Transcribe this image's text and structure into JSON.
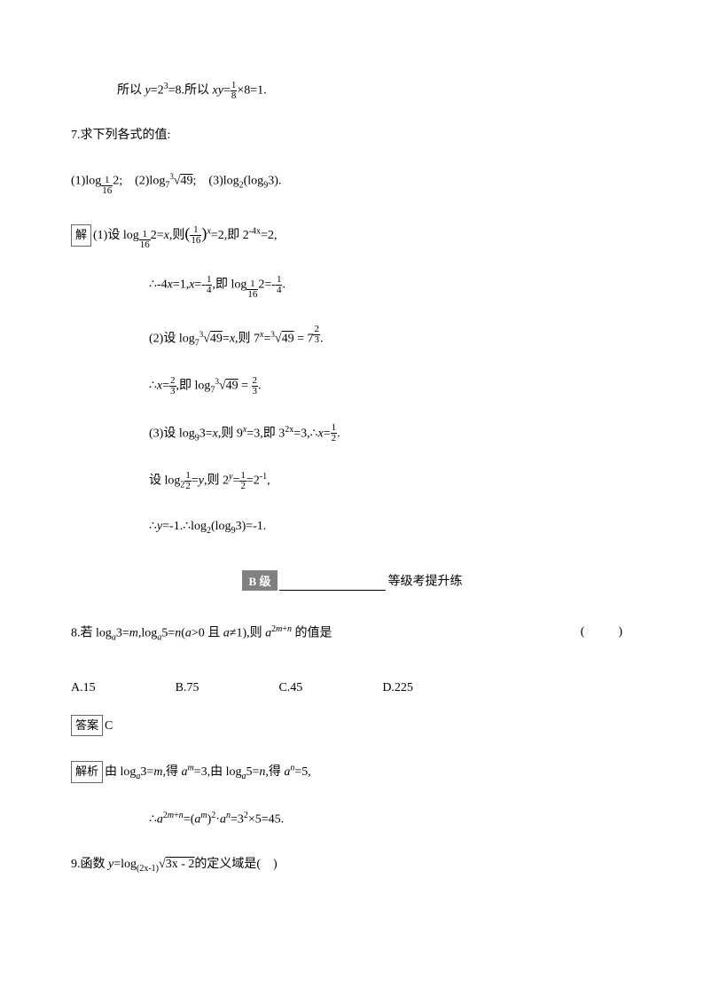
{
  "lines": {
    "l1_prefix": "所以 ",
    "l1_eq1": "y",
    "l1_eq1_b": "=2",
    "l1_eq1_sup": "3",
    "l1_eq1_c": "=8.所以 ",
    "l1_eq2": "xy",
    "l1_eq2_a": "=",
    "l1_frac1_n": "1",
    "l1_frac1_d": "8",
    "l1_eq2_b": "×8=1.",
    "q7": "7.求下列各式的值:",
    "q7sub": "(1)log",
    "q7sub_base_n": "1",
    "q7sub_base_d": "16",
    "q7sub_b": "2; (2)log",
    "q7sub_c": "7",
    "q7sub_root_pre": "3",
    "q7sub_root": "49",
    "q7sub_d": "; (3)log",
    "q7sub_e": "2",
    "q7sub_f": "(log",
    "q7sub_g": "9",
    "q7sub_h": "3).",
    "sol_label": "解",
    "s1a": "(1)设 log",
    "s1a_b": "2=",
    "s1a_x": "x",
    "s1a_c": ",则",
    "s1a_frac_n": "1",
    "s1a_frac_d": "16",
    "s1a_sup": "x",
    "s1a_d": "=2,即 2",
    "s1a_sup2": "-4x",
    "s1a_e": "=2,",
    "s1b": "∴-4",
    "s1b_x": "x",
    "s1b_a": "=1,",
    "s1b_x2": "x",
    "s1b_b": "=-",
    "s1b_frac_n": "1",
    "s1b_frac_d": "4",
    "s1b_c": ",即 log",
    "s1b_d": "2=-",
    "s1b_frac2_n": "1",
    "s1b_frac2_d": "4",
    "s1b_e": ".",
    "s2a": "(2)设 log",
    "s2a_sub": "7",
    "s2a_rootpre": "3",
    "s2a_root": "49",
    "s2a_a": "=",
    "s2a_x": "x",
    "s2a_b": ",则 7",
    "s2a_sup": "x",
    "s2a_c": "=",
    "s2a_d": " = 7",
    "s2a_frac_n": "2",
    "s2a_frac_d": "3",
    "s2a_e": ".",
    "s2b": "∴",
    "s2b_x": "x",
    "s2b_a": "=",
    "s2b_frac_n": "2",
    "s2b_frac_d": "3",
    "s2b_b": ",即 log",
    "s2b_sub": "7",
    "s2b_c": " = ",
    "s2b_frac2_n": "2",
    "s2b_frac2_d": "3",
    "s2b_d": ".",
    "s3a": "(3)设 log",
    "s3a_sub": "9",
    "s3a_a": "3=",
    "s3a_x": "x",
    "s3a_b": ",则 9",
    "s3a_sup": "x",
    "s3a_c": "=3,即 3",
    "s3a_sup2": "2x",
    "s3a_d": "=3,∴",
    "s3a_x2": "x",
    "s3a_e": "=",
    "s3a_frac_n": "1",
    "s3a_frac_d": "2",
    "s3a_f": ".",
    "s3b": "设 log",
    "s3b_sub": "2",
    "s3b_frac_n": "1",
    "s3b_frac_d": "2",
    "s3b_a": "=",
    "s3b_y": "y",
    "s3b_b": ",则 2",
    "s3b_sup": "y",
    "s3b_c": "=",
    "s3b_frac2_n": "1",
    "s3b_frac2_d": "2",
    "s3b_d": "=2",
    "s3b_sup2": "-1",
    "s3b_e": ",",
    "s3c": "∴",
    "s3c_y": "y",
    "s3c_a": "=-1.∴log",
    "s3c_sub": "2",
    "s3c_b": "(log",
    "s3c_sub2": "9",
    "s3c_c": "3)=-1.",
    "level_badge": "B 级",
    "level_text": "等级考提升练",
    "q8": "8.若 log",
    "q8_sub": "a",
    "q8_a": "3=",
    "q8_m": "m",
    "q8_b": ",log",
    "q8_c": "5=",
    "q8_n": "n",
    "q8_d": "(",
    "q8_av": "a",
    "q8_e": ">0 且 ",
    "q8_f": "≠1),则 ",
    "q8_a2": "a",
    "q8_sup": "2m+n",
    "q8_g": " 的值是",
    "q8_paren": "( )",
    "optA": "A.15",
    "optB": "B.75",
    "optC": "C.45",
    "optD": "D.225",
    "ans_label": "答案",
    "ans": "C",
    "ana_label": "解析",
    "ana_a": "由 log",
    "ana_b": "3=",
    "ana_m": "m",
    "ana_c": ",得 ",
    "ana_am": "a",
    "ana_sup_m": "m",
    "ana_d": "=3,由 log",
    "ana_e": "5=",
    "ana_n": "n",
    "ana_f": ",得 ",
    "ana_an": "a",
    "ana_sup_n": "n",
    "ana_g": "=5,",
    "ana2": "∴",
    "ana2_a": "a",
    "ana2_sup": "2m+n",
    "ana2_b": "=(",
    "ana2_sup2": "m",
    "ana2_c": ")",
    "ana2_sup3": "2",
    "ana2_d": "·",
    "ana2_sup4": "n",
    "ana2_e": "=3",
    "ana2_sup5": "2",
    "ana2_f": "×5=45.",
    "q9": "9.函数 ",
    "q9_y": "y",
    "q9_a": "=log",
    "q9_sub": "(2x-1)",
    "q9_root": "3x - 2",
    "q9_b": "的定义域是( )"
  },
  "colors": {
    "badge_bg": "#808080",
    "badge_fg": "#ffffff"
  }
}
